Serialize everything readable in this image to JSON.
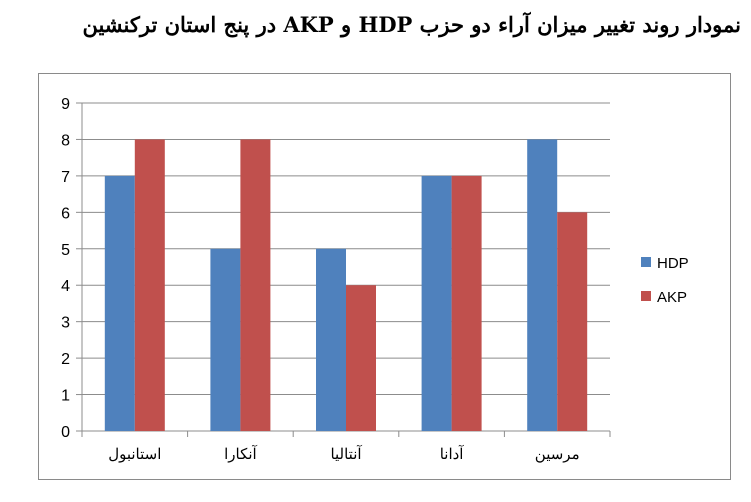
{
  "title": "نمودار روند تغییر میزان آراء دو حزب HDP و AKP در پنج استان ترکنشین",
  "colors": {
    "HDP": "#4f81bd",
    "AKP": "#c0504d"
  },
  "chart_data": {
    "type": "bar",
    "categories": [
      "استانبول",
      "آنکارا",
      "آنتالیا",
      "آدانا",
      "مرسین"
    ],
    "series": [
      {
        "name": "HDP",
        "values": [
          7,
          5,
          5,
          7,
          8
        ]
      },
      {
        "name": "AKP",
        "values": [
          8,
          8,
          4,
          7,
          6
        ]
      }
    ],
    "ylim": [
      0,
      9
    ],
    "yticks": [
      0,
      1,
      2,
      3,
      4,
      5,
      6,
      7,
      8,
      9
    ],
    "grid": true,
    "legend": "right"
  }
}
